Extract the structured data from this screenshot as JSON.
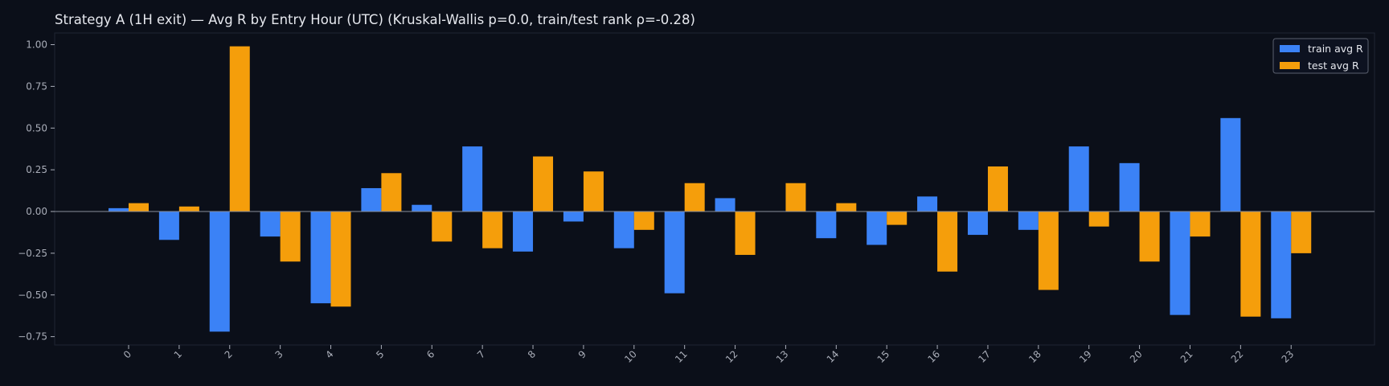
{
  "chart_data": {
    "type": "bar",
    "title": "Strategy A (1H exit) — Avg R by Entry Hour (UTC) (Kruskal-Wallis p=0.0, train/test rank ρ=-0.28)",
    "xlabel": "",
    "ylabel": "",
    "categories": [
      "0",
      "1",
      "2",
      "3",
      "4",
      "5",
      "6",
      "7",
      "8",
      "9",
      "10",
      "11",
      "12",
      "13",
      "14",
      "15",
      "16",
      "17",
      "18",
      "19",
      "20",
      "21",
      "22",
      "23"
    ],
    "series": [
      {
        "name": "train avg R",
        "color": "#3b82f6",
        "values": [
          0.02,
          -0.17,
          -0.72,
          -0.15,
          -0.55,
          0.14,
          0.04,
          0.39,
          -0.24,
          -0.06,
          -0.22,
          -0.49,
          0.08,
          0.0,
          -0.16,
          -0.2,
          0.09,
          -0.14,
          -0.11,
          0.39,
          0.29,
          -0.62,
          0.56,
          -0.64
        ]
      },
      {
        "name": "test avg R",
        "color": "#f59e0b",
        "values": [
          0.05,
          0.03,
          0.99,
          -0.3,
          -0.57,
          0.23,
          -0.18,
          -0.22,
          0.33,
          0.24,
          -0.11,
          0.17,
          -0.26,
          0.17,
          0.05,
          -0.08,
          -0.36,
          0.27,
          -0.47,
          -0.09,
          -0.3,
          -0.15,
          -0.63,
          -0.25
        ]
      }
    ],
    "ylim": [
      -0.8,
      1.07
    ],
    "yticks": [
      -0.75,
      -0.5,
      -0.25,
      0.0,
      0.25,
      0.5,
      0.75,
      1.0
    ],
    "ytick_labels": [
      "−0.75",
      "−0.50",
      "−0.25",
      "0.00",
      "0.25",
      "0.50",
      "0.75",
      "1.00"
    ],
    "grid": false,
    "legend_position": "top-right",
    "background": "#0b0f19",
    "zero_line_color": "#8a8f9c"
  }
}
